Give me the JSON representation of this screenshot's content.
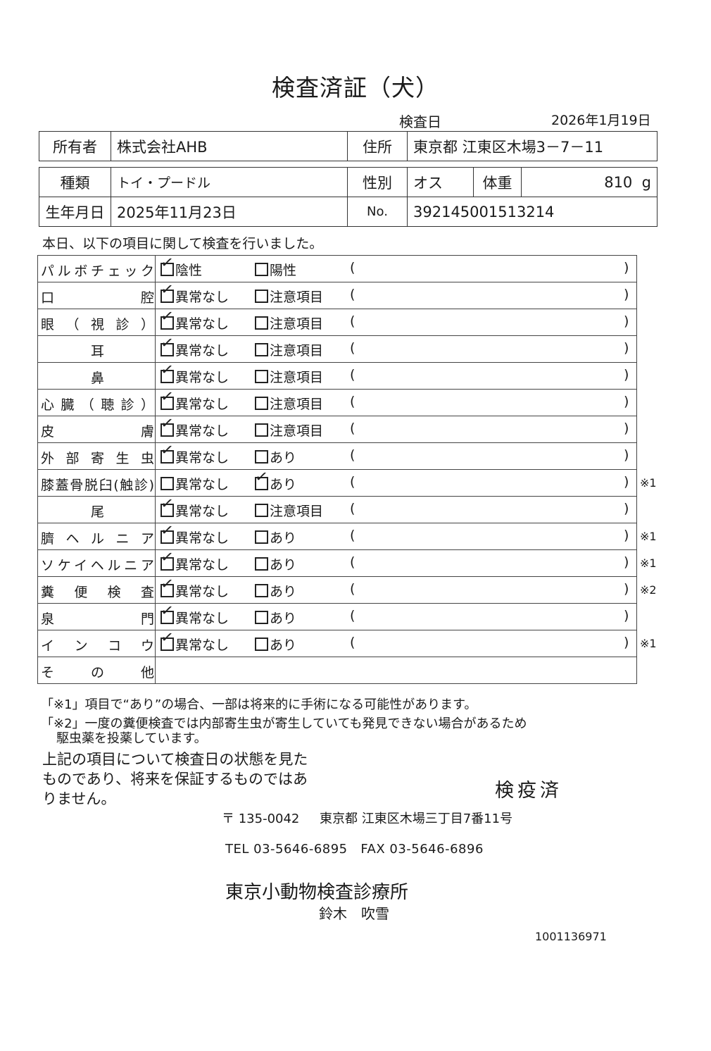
{
  "title": "検査済証（犬）",
  "inspection_date": {
    "label": "検査日",
    "value": "2026年1月19日"
  },
  "owner": {
    "label": "所有者",
    "value": "株式会社AHB"
  },
  "address": {
    "label": "住所",
    "value": "東京都 江東区木場3－7－11"
  },
  "breed": {
    "label": "種類",
    "value": "トイ・プードル"
  },
  "sex": {
    "label": "性別",
    "value": "オス"
  },
  "weight": {
    "label": "体重",
    "value": "810",
    "unit": "g"
  },
  "birthdate": {
    "label": "生年月日",
    "value": "2025年11月23日"
  },
  "number": {
    "label": "No.",
    "value": "392145001513214"
  },
  "intro": "本日、以下の項目に関して検査を行いました。",
  "paren_open": "(",
  "paren_close": ")",
  "checks": [
    {
      "label": "パルボチェック",
      "opt1": "陰性",
      "opt2": "陽性",
      "checked": 1,
      "note": ""
    },
    {
      "label": "口腔",
      "opt1": "異常なし",
      "opt2": "注意項目",
      "checked": 1,
      "note": ""
    },
    {
      "label": "眼（視診）",
      "opt1": "異常なし",
      "opt2": "注意項目",
      "checked": 1,
      "note": ""
    },
    {
      "label": "耳",
      "opt1": "異常なし",
      "opt2": "注意項目",
      "checked": 1,
      "note": ""
    },
    {
      "label": "鼻",
      "opt1": "異常なし",
      "opt2": "注意項目",
      "checked": 1,
      "note": ""
    },
    {
      "label": "心臓（聴診）",
      "opt1": "異常なし",
      "opt2": "注意項目",
      "checked": 1,
      "note": ""
    },
    {
      "label": "皮膚",
      "opt1": "異常なし",
      "opt2": "注意項目",
      "checked": 1,
      "note": ""
    },
    {
      "label": "外部寄生虫",
      "opt1": "異常なし",
      "opt2": "あり",
      "checked": 1,
      "note": ""
    },
    {
      "label": "膝蓋骨脱臼(触診)",
      "opt1": "異常なし",
      "opt2": "あり",
      "checked": 2,
      "note": "※1"
    },
    {
      "label": "尾",
      "opt1": "異常なし",
      "opt2": "注意項目",
      "checked": 1,
      "note": ""
    },
    {
      "label": "臍ヘルニア",
      "opt1": "異常なし",
      "opt2": "あり",
      "checked": 1,
      "note": "※1"
    },
    {
      "label": "ソケイヘルニア",
      "opt1": "異常なし",
      "opt2": "あり",
      "checked": 1,
      "note": "※1"
    },
    {
      "label": "糞便検査",
      "opt1": "異常なし",
      "opt2": "あり",
      "checked": 1,
      "note": "※2"
    },
    {
      "label": "泉門",
      "opt1": "異常なし",
      "opt2": "あり",
      "checked": 1,
      "note": ""
    },
    {
      "label": "インコウ",
      "opt1": "異常なし",
      "opt2": "あり",
      "checked": 1,
      "note": "※1"
    }
  ],
  "other": {
    "label": "その他",
    "value": ""
  },
  "footnotes": [
    "「※1」項目で“あり”の場合、一部は将来的に手術になる可能性があります。",
    "「※2」一度の糞便検査では内部寄生虫が寄生していても発見できない場合があるため",
    "駆虫薬を投薬しています。"
  ],
  "disclaimer": "上記の項目について検査日の状態を見たものであり、将来を保証するものではありません。",
  "stamp": "検疫済",
  "clinic": {
    "postal": "〒 135-0042",
    "address": "東京都 江東区木場三丁目7番11号",
    "tel": "TEL 03-5646-6895",
    "fax": "FAX 03-5646-6896",
    "name": "東京小動物検査診療所",
    "vet": "鈴木　吹雪"
  },
  "document_number": "1001136971"
}
